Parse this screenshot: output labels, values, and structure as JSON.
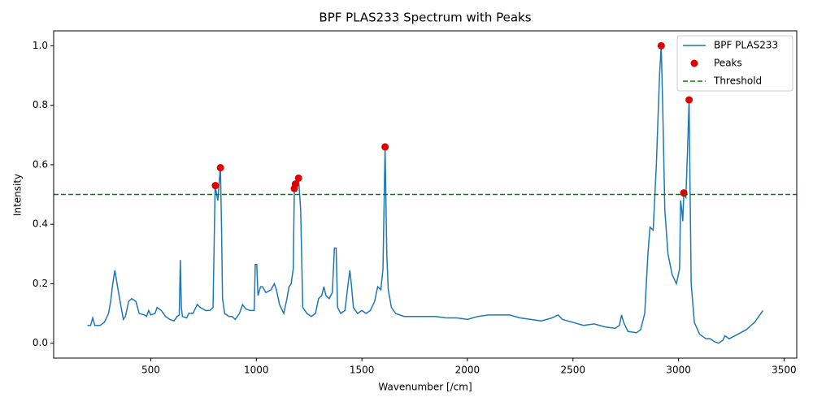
{
  "chart_data": {
    "type": "line",
    "title": "BPF PLAS233 Spectrum with Peaks",
    "x_label": "Wavenumber [/cm]",
    "y_label": "Intensity",
    "xlim": [
      40,
      3560
    ],
    "ylim": [
      -0.05,
      1.05
    ],
    "xticks": [
      500,
      1000,
      1500,
      2000,
      2500,
      3000,
      3500
    ],
    "yticks": [
      {
        "value": 0,
        "label": "0.0"
      },
      {
        "value": 0.2,
        "label": "0.2"
      },
      {
        "value": 0.4,
        "label": "0.4"
      },
      {
        "value": 0.6,
        "label": "0.6"
      },
      {
        "value": 0.8,
        "label": "0.8"
      },
      {
        "value": 1,
        "label": "1.0"
      }
    ],
    "legend": "upper right",
    "series": [
      {
        "name": "BPF PLAS233",
        "type": "line",
        "color": "#1f77b4",
        "x": [
          200,
          215,
          225,
          235,
          260,
          280,
          300,
          310,
          320,
          330,
          345,
          360,
          370,
          380,
          395,
          410,
          430,
          445,
          470,
          480,
          490,
          500,
          520,
          530,
          550,
          570,
          590,
          610,
          625,
          635,
          640,
          645,
          650,
          670,
          680,
          700,
          720,
          735,
          760,
          780,
          795,
          805,
          812,
          818,
          825,
          830,
          835,
          840,
          850,
          870,
          885,
          900,
          920,
          935,
          950,
          970,
          990,
          995,
          1002,
          1008,
          1020,
          1030,
          1045,
          1070,
          1085,
          1095,
          1110,
          1130,
          1145,
          1155,
          1165,
          1175,
          1180,
          1185,
          1190,
          1200,
          1210,
          1220,
          1240,
          1260,
          1280,
          1295,
          1310,
          1320,
          1330,
          1345,
          1360,
          1370,
          1378,
          1385,
          1400,
          1420,
          1435,
          1443,
          1450,
          1460,
          1480,
          1500,
          1520,
          1540,
          1560,
          1575,
          1590,
          1600,
          1610,
          1618,
          1625,
          1640,
          1660,
          1680,
          1700,
          1750,
          1800,
          1850,
          1900,
          1950,
          2000,
          2050,
          2100,
          2150,
          2200,
          2250,
          2300,
          2350,
          2400,
          2430,
          2450,
          2500,
          2550,
          2600,
          2650,
          2700,
          2720,
          2730,
          2740,
          2760,
          2800,
          2820,
          2840,
          2855,
          2865,
          2880,
          2895,
          2910,
          2918,
          2925,
          2935,
          2950,
          2970,
          2990,
          3005,
          3010,
          3015,
          3020,
          3025,
          3035,
          3045,
          3050,
          3055,
          3060,
          3075,
          3100,
          3130,
          3150,
          3170,
          3190,
          3210,
          3220,
          3240,
          3280,
          3320,
          3360,
          3400
        ],
        "values": [
          0.06,
          0.06,
          0.085,
          0.06,
          0.06,
          0.07,
          0.1,
          0.14,
          0.2,
          0.245,
          0.18,
          0.12,
          0.08,
          0.09,
          0.14,
          0.15,
          0.14,
          0.1,
          0.095,
          0.09,
          0.11,
          0.095,
          0.1,
          0.12,
          0.11,
          0.09,
          0.08,
          0.075,
          0.09,
          0.095,
          0.28,
          0.12,
          0.09,
          0.085,
          0.1,
          0.1,
          0.13,
          0.12,
          0.11,
          0.11,
          0.12,
          0.53,
          0.5,
          0.48,
          0.55,
          0.59,
          0.4,
          0.15,
          0.1,
          0.09,
          0.09,
          0.08,
          0.1,
          0.13,
          0.115,
          0.11,
          0.11,
          0.265,
          0.265,
          0.16,
          0.19,
          0.19,
          0.17,
          0.18,
          0.2,
          0.18,
          0.13,
          0.1,
          0.15,
          0.19,
          0.2,
          0.25,
          0.52,
          0.53,
          0.51,
          0.555,
          0.45,
          0.12,
          0.1,
          0.09,
          0.1,
          0.15,
          0.16,
          0.19,
          0.16,
          0.15,
          0.17,
          0.32,
          0.32,
          0.12,
          0.1,
          0.11,
          0.2,
          0.245,
          0.2,
          0.12,
          0.1,
          0.11,
          0.1,
          0.11,
          0.14,
          0.19,
          0.18,
          0.25,
          0.66,
          0.3,
          0.18,
          0.12,
          0.1,
          0.095,
          0.09,
          0.09,
          0.09,
          0.09,
          0.085,
          0.085,
          0.08,
          0.09,
          0.095,
          0.095,
          0.095,
          0.085,
          0.08,
          0.075,
          0.085,
          0.095,
          0.08,
          0.07,
          0.06,
          0.065,
          0.055,
          0.05,
          0.06,
          0.095,
          0.07,
          0.04,
          0.035,
          0.045,
          0.1,
          0.3,
          0.39,
          0.38,
          0.6,
          0.9,
          1.0,
          0.8,
          0.45,
          0.3,
          0.23,
          0.2,
          0.25,
          0.48,
          0.45,
          0.41,
          0.5,
          0.49,
          0.7,
          0.818,
          0.5,
          0.2,
          0.07,
          0.03,
          0.015,
          0.015,
          0.005,
          0.0,
          0.01,
          0.025,
          0.015,
          0.03,
          0.045,
          0.07,
          0.11
        ]
      },
      {
        "name": "Peaks",
        "type": "scatter",
        "color": "#e00000",
        "x": [
          806,
          830,
          1180,
          1185,
          1200,
          1610,
          2918,
          3025,
          3050
        ],
        "values": [
          0.53,
          0.59,
          0.52,
          0.535,
          0.555,
          0.66,
          1.0,
          0.505,
          0.818
        ]
      },
      {
        "name": "Threshold",
        "type": "hline",
        "color": "green",
        "value": 0.5
      }
    ]
  }
}
